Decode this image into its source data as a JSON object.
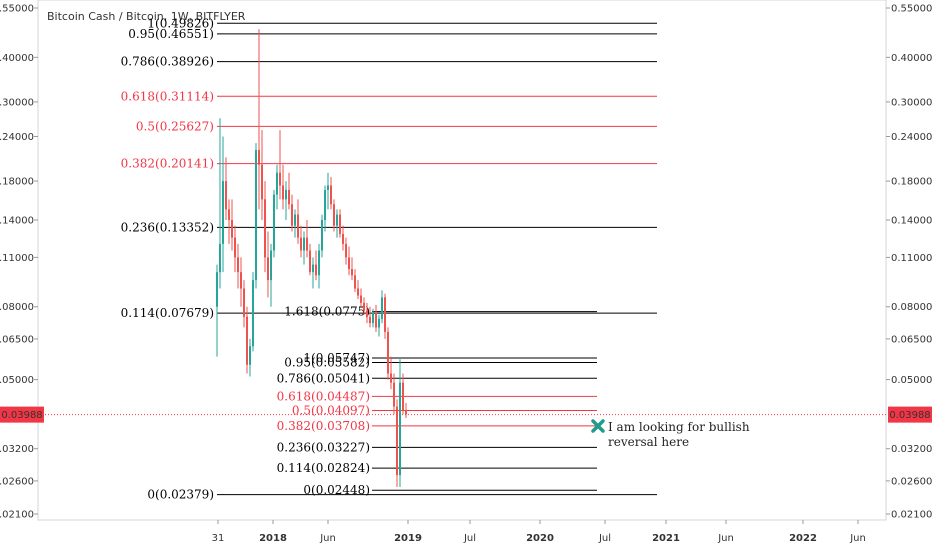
{
  "header": {
    "title": "Bitcoin Cash / Bitcoin, 1W, BITFLYER"
  },
  "price_tag": {
    "value": "0.03988",
    "color": "#f23645"
  },
  "annotation": {
    "line1": "I am looking for bullish",
    "line2": "reversal here",
    "marker_icon": "x-mark-icon",
    "color": "#1e9e8a"
  },
  "chart_data": {
    "type": "candlestick",
    "title": "Bitcoin Cash / Bitcoin, 1W, BITFLYER",
    "y_scale": "log",
    "ylim": [
      0.02,
      0.56
    ],
    "y_ticks": [
      "0.55000",
      "0.40000",
      "0.30000",
      "0.24000",
      "0.18000",
      "0.14000",
      "0.11000",
      "0.08000",
      "0.06500",
      "0.05000",
      "0.03988",
      "0.03200",
      "0.02600",
      "0.02100"
    ],
    "x_ticks": [
      "31",
      "2018",
      "Jun",
      "Jul",
      "2019",
      "Jul",
      "2020",
      "Jul",
      "2021",
      "Jun",
      "2022",
      "Jun"
    ],
    "current_price": 0.03988,
    "colors": {
      "up": "#26a69a",
      "down": "#ef5350",
      "fib_major": "#000000",
      "fib_key": "#f23645"
    },
    "fib_set_1": [
      {
        "label": "1(0.49826)",
        "value": 0.49826,
        "key": false
      },
      {
        "label": "0.95(0.46551)",
        "value": 0.46551,
        "key": false
      },
      {
        "label": "0.786(0.38926)",
        "value": 0.38926,
        "key": false
      },
      {
        "label": "0.618(0.31114)",
        "value": 0.31114,
        "key": true
      },
      {
        "label": "0.5(0.25627)",
        "value": 0.25627,
        "key": true
      },
      {
        "label": "0.382(0.20141)",
        "value": 0.20141,
        "key": true
      },
      {
        "label": "0.236(0.13352)",
        "value": 0.13352,
        "key": false
      },
      {
        "label": "0.114(0.07679)",
        "value": 0.07679,
        "key": false
      },
      {
        "label": "0(0.02379)",
        "value": 0.02379,
        "key": false
      }
    ],
    "fib_set_2": [
      {
        "label": "1.618(0.0775)",
        "value": 0.0775,
        "key": false
      },
      {
        "label": "1(0.05747)",
        "value": 0.05747,
        "key": false
      },
      {
        "label": "0.95(0.05582)",
        "value": 0.05582,
        "key": false
      },
      {
        "label": "0.786(0.05041)",
        "value": 0.05041,
        "key": false
      },
      {
        "label": "0.618(0.04487)",
        "value": 0.04487,
        "key": true
      },
      {
        "label": "0.5(0.04097)",
        "value": 0.04097,
        "key": true
      },
      {
        "label": "0.382(0.03708)",
        "value": 0.03708,
        "key": true
      },
      {
        "label": "0.236(0.03227)",
        "value": 0.03227,
        "key": false
      },
      {
        "label": "0.114(0.02824)",
        "value": 0.02824,
        "key": false
      },
      {
        "label": "0(0.02448)",
        "value": 0.02448,
        "key": false
      }
    ],
    "candles": [
      {
        "o": 0.08,
        "h": 0.105,
        "l": 0.058,
        "c": 0.1
      },
      {
        "o": 0.1,
        "h": 0.27,
        "l": 0.09,
        "c": 0.12
      },
      {
        "o": 0.12,
        "h": 0.24,
        "l": 0.1,
        "c": 0.18
      },
      {
        "o": 0.18,
        "h": 0.21,
        "l": 0.14,
        "c": 0.15
      },
      {
        "o": 0.15,
        "h": 0.16,
        "l": 0.12,
        "c": 0.14
      },
      {
        "o": 0.14,
        "h": 0.16,
        "l": 0.115,
        "c": 0.125
      },
      {
        "o": 0.125,
        "h": 0.135,
        "l": 0.1,
        "c": 0.11
      },
      {
        "o": 0.11,
        "h": 0.12,
        "l": 0.09,
        "c": 0.1
      },
      {
        "o": 0.1,
        "h": 0.11,
        "l": 0.08,
        "c": 0.09
      },
      {
        "o": 0.09,
        "h": 0.095,
        "l": 0.07,
        "c": 0.075
      },
      {
        "o": 0.075,
        "h": 0.08,
        "l": 0.052,
        "c": 0.055
      },
      {
        "o": 0.055,
        "h": 0.065,
        "l": 0.051,
        "c": 0.062
      },
      {
        "o": 0.062,
        "h": 0.1,
        "l": 0.06,
        "c": 0.095
      },
      {
        "o": 0.095,
        "h": 0.23,
        "l": 0.09,
        "c": 0.22
      },
      {
        "o": 0.22,
        "h": 0.48,
        "l": 0.15,
        "c": 0.2
      },
      {
        "o": 0.2,
        "h": 0.25,
        "l": 0.14,
        "c": 0.16
      },
      {
        "o": 0.16,
        "h": 0.18,
        "l": 0.1,
        "c": 0.11
      },
      {
        "o": 0.11,
        "h": 0.13,
        "l": 0.085,
        "c": 0.095
      },
      {
        "o": 0.095,
        "h": 0.12,
        "l": 0.08,
        "c": 0.115
      },
      {
        "o": 0.115,
        "h": 0.17,
        "l": 0.11,
        "c": 0.165
      },
      {
        "o": 0.165,
        "h": 0.2,
        "l": 0.15,
        "c": 0.19
      },
      {
        "o": 0.19,
        "h": 0.25,
        "l": 0.16,
        "c": 0.175
      },
      {
        "o": 0.175,
        "h": 0.2,
        "l": 0.15,
        "c": 0.16
      },
      {
        "o": 0.16,
        "h": 0.18,
        "l": 0.14,
        "c": 0.17
      },
      {
        "o": 0.17,
        "h": 0.19,
        "l": 0.15,
        "c": 0.155
      },
      {
        "o": 0.155,
        "h": 0.165,
        "l": 0.13,
        "c": 0.135
      },
      {
        "o": 0.135,
        "h": 0.15,
        "l": 0.125,
        "c": 0.145
      },
      {
        "o": 0.145,
        "h": 0.16,
        "l": 0.12,
        "c": 0.125
      },
      {
        "o": 0.125,
        "h": 0.135,
        "l": 0.11,
        "c": 0.115
      },
      {
        "o": 0.115,
        "h": 0.13,
        "l": 0.105,
        "c": 0.125
      },
      {
        "o": 0.125,
        "h": 0.14,
        "l": 0.11,
        "c": 0.115
      },
      {
        "o": 0.115,
        "h": 0.12,
        "l": 0.098,
        "c": 0.1
      },
      {
        "o": 0.1,
        "h": 0.11,
        "l": 0.09,
        "c": 0.105
      },
      {
        "o": 0.105,
        "h": 0.115,
        "l": 0.095,
        "c": 0.098
      },
      {
        "o": 0.098,
        "h": 0.12,
        "l": 0.09,
        "c": 0.115
      },
      {
        "o": 0.115,
        "h": 0.145,
        "l": 0.11,
        "c": 0.14
      },
      {
        "o": 0.14,
        "h": 0.175,
        "l": 0.13,
        "c": 0.17
      },
      {
        "o": 0.17,
        "h": 0.19,
        "l": 0.15,
        "c": 0.175
      },
      {
        "o": 0.175,
        "h": 0.185,
        "l": 0.15,
        "c": 0.155
      },
      {
        "o": 0.155,
        "h": 0.16,
        "l": 0.13,
        "c": 0.135
      },
      {
        "o": 0.135,
        "h": 0.15,
        "l": 0.125,
        "c": 0.145
      },
      {
        "o": 0.145,
        "h": 0.15,
        "l": 0.125,
        "c": 0.128
      },
      {
        "o": 0.128,
        "h": 0.135,
        "l": 0.115,
        "c": 0.12
      },
      {
        "o": 0.12,
        "h": 0.125,
        "l": 0.105,
        "c": 0.11
      },
      {
        "o": 0.11,
        "h": 0.118,
        "l": 0.098,
        "c": 0.102
      },
      {
        "o": 0.102,
        "h": 0.11,
        "l": 0.095,
        "c": 0.098
      },
      {
        "o": 0.098,
        "h": 0.102,
        "l": 0.088,
        "c": 0.09
      },
      {
        "o": 0.09,
        "h": 0.095,
        "l": 0.084,
        "c": 0.086
      },
      {
        "o": 0.086,
        "h": 0.09,
        "l": 0.08,
        "c": 0.082
      },
      {
        "o": 0.082,
        "h": 0.085,
        "l": 0.076,
        "c": 0.078
      },
      {
        "o": 0.078,
        "h": 0.082,
        "l": 0.072,
        "c": 0.075
      },
      {
        "o": 0.075,
        "h": 0.08,
        "l": 0.07,
        "c": 0.072
      },
      {
        "o": 0.072,
        "h": 0.079,
        "l": 0.07,
        "c": 0.077
      },
      {
        "o": 0.077,
        "h": 0.081,
        "l": 0.068,
        "c": 0.07
      },
      {
        "o": 0.07,
        "h": 0.076,
        "l": 0.066,
        "c": 0.074
      },
      {
        "o": 0.074,
        "h": 0.089,
        "l": 0.072,
        "c": 0.085
      },
      {
        "o": 0.085,
        "h": 0.087,
        "l": 0.065,
        "c": 0.068
      },
      {
        "o": 0.068,
        "h": 0.07,
        "l": 0.05,
        "c": 0.052
      },
      {
        "o": 0.052,
        "h": 0.058,
        "l": 0.047,
        "c": 0.049
      },
      {
        "o": 0.049,
        "h": 0.052,
        "l": 0.04,
        "c": 0.042
      },
      {
        "o": 0.042,
        "h": 0.044,
        "l": 0.025,
        "c": 0.027
      },
      {
        "o": 0.027,
        "h": 0.057,
        "l": 0.025,
        "c": 0.049
      },
      {
        "o": 0.049,
        "h": 0.052,
        "l": 0.04,
        "c": 0.041
      },
      {
        "o": 0.041,
        "h": 0.043,
        "l": 0.039,
        "c": 0.04
      }
    ]
  }
}
